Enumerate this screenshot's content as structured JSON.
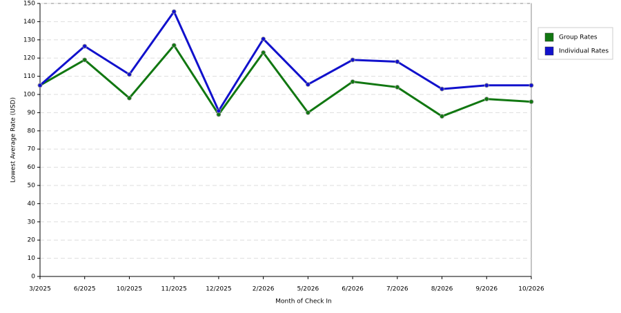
{
  "chart_data": {
    "type": "line",
    "x_label": "Month of Check In",
    "y_label": "Lowest Average Rate (USD)",
    "categories": [
      "3/2025",
      "6/2025",
      "10/2025",
      "11/2025",
      "12/2025",
      "2/2026",
      "5/2026",
      "6/2026",
      "7/2026",
      "8/2026",
      "9/2026",
      "10/2026"
    ],
    "series": [
      {
        "name": "Group Rates",
        "color": "#117711",
        "values": [
          105,
          119,
          98,
          127,
          89,
          123,
          90,
          107,
          104,
          88,
          97.5,
          96
        ]
      },
      {
        "name": "Individual Rates",
        "color": "#1111cc",
        "values": [
          105,
          126.5,
          111,
          145.5,
          91,
          130.5,
          105.5,
          119,
          118,
          103,
          105,
          105
        ]
      }
    ],
    "ylim": [
      0,
      150
    ],
    "yticks": [
      0,
      10,
      20,
      30,
      40,
      50,
      60,
      70,
      80,
      90,
      100,
      110,
      120,
      130,
      140,
      150
    ],
    "grid": true,
    "legend": "right"
  }
}
